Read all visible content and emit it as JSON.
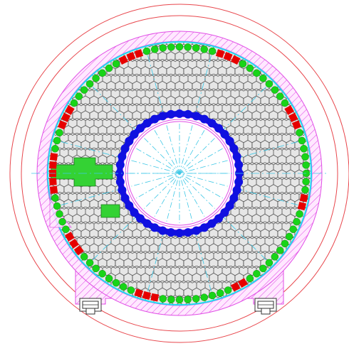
{
  "colors": {
    "outer_ring": "#e8464c",
    "hatch": "#e14ee6",
    "hatch_fill": "#ffd6ff",
    "hex_stroke": "#333333",
    "hex_fill": "#e5e5e5",
    "radial": "#40c8e6",
    "cyan_border": "#18e0f0",
    "green_dot": "#18d418",
    "red_fill": "#e60000",
    "blue_dot": "#1010e0",
    "core_line": "#e14ee6",
    "support": "#333333"
  },
  "icons": {
    "support_left": "support-foot-icon",
    "support_right": "support-foot-icon"
  }
}
